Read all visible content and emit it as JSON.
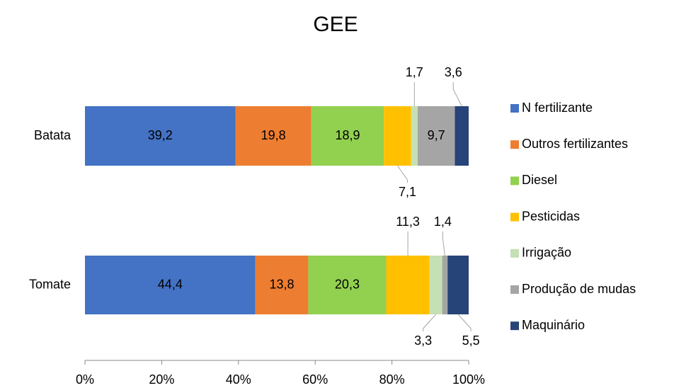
{
  "chart_data": {
    "type": "stacked_bar_horizontal",
    "title": "GEE",
    "categories": [
      "Batata",
      "Tomate"
    ],
    "series": [
      {
        "name": "N fertilizante",
        "color": "#4472c4",
        "values": [
          39.2,
          44.4
        ],
        "value_labels": [
          "39,2",
          "44,4"
        ]
      },
      {
        "name": "Outros fertilizantes",
        "color": "#ed7d31",
        "values": [
          19.8,
          13.8
        ],
        "value_labels": [
          "19,8",
          "13,8"
        ]
      },
      {
        "name": "Diesel",
        "color": "#92d050",
        "values": [
          18.9,
          20.3
        ],
        "value_labels": [
          "18,9",
          "20,3"
        ]
      },
      {
        "name": "Pesticidas",
        "color": "#ffc000",
        "values": [
          7.1,
          11.3
        ],
        "value_labels": [
          "7,1",
          "11,3"
        ]
      },
      {
        "name": "Irrigação",
        "color": "#c5e0b4",
        "values": [
          1.7,
          3.3
        ],
        "value_labels": [
          "1,7",
          "3,3"
        ]
      },
      {
        "name": "Produção de mudas",
        "color": "#a5a5a5",
        "values": [
          9.7,
          1.4
        ],
        "value_labels": [
          "9,7",
          "1,4"
        ]
      },
      {
        "name": "Maquinário",
        "color": "#264478",
        "values": [
          3.6,
          5.5
        ],
        "value_labels": [
          "3,6",
          "5,5"
        ]
      }
    ],
    "xlim": [
      0,
      100
    ],
    "xticks": [
      {
        "value": 0,
        "label": "0%"
      },
      {
        "value": 20,
        "label": "20%"
      },
      {
        "value": 40,
        "label": "40%"
      },
      {
        "value": 60,
        "label": "60%"
      },
      {
        "value": 80,
        "label": "80%"
      },
      {
        "value": 100,
        "label": "100%"
      }
    ],
    "legend": "right"
  }
}
